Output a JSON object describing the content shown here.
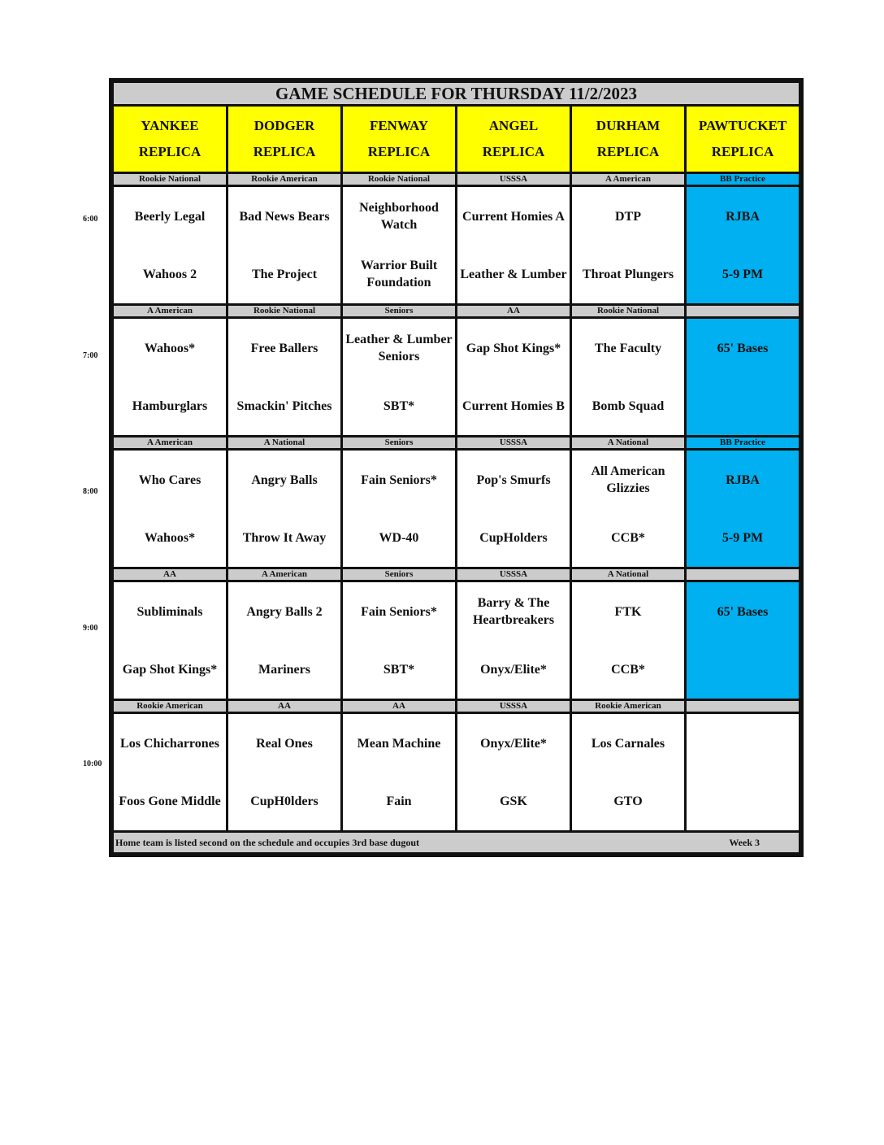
{
  "title": "GAME SCHEDULE FOR THURSDAY 11/2/2023",
  "fields": [
    {
      "l1": "YANKEE",
      "l2": "REPLICA"
    },
    {
      "l1": "DODGER",
      "l2": "REPLICA"
    },
    {
      "l1": "FENWAY",
      "l2": "REPLICA"
    },
    {
      "l1": "ANGEL",
      "l2": "REPLICA"
    },
    {
      "l1": "DURHAM",
      "l2": "REPLICA"
    },
    {
      "l1": "PAWTUCKET",
      "l2": "REPLICA"
    }
  ],
  "colors": {
    "header": "#ffff00",
    "practice": "#00b0f0",
    "band": "#cccccc"
  },
  "slots": [
    {
      "time": "6:00",
      "divisions": [
        "Rookie National",
        "Rookie American",
        "Rookie National",
        "USSSA",
        "A American",
        "BB Practice"
      ],
      "games": [
        [
          "Beerly Legal",
          "Wahoos 2"
        ],
        [
          "Bad News Bears",
          "The Project"
        ],
        [
          "Neighborhood Watch",
          "Warrior Built Foundation"
        ],
        [
          "Current Homies A",
          "Leather & Lumber"
        ],
        [
          "DTP",
          "Throat Plungers"
        ],
        [
          "RJBA",
          "5-9 PM"
        ]
      ]
    },
    {
      "time": "7:00",
      "divisions": [
        "A American",
        "Rookie National",
        "Seniors",
        "AA",
        "Rookie National",
        ""
      ],
      "games": [
        [
          "Wahoos*",
          "Hamburglars"
        ],
        [
          "Free Ballers",
          "Smackin' Pitches"
        ],
        [
          "Leather & Lumber Seniors",
          "SBT*"
        ],
        [
          "Gap Shot Kings*",
          "Current Homies B"
        ],
        [
          "The Faculty",
          "Bomb Squad"
        ],
        [
          "65' Bases",
          ""
        ]
      ]
    },
    {
      "time": "8:00",
      "divisions": [
        "A American",
        "A National",
        "Seniors",
        "USSSA",
        "A National",
        "BB Practice"
      ],
      "games": [
        [
          "Who Cares",
          "Wahoos*"
        ],
        [
          "Angry Balls",
          "Throw It Away"
        ],
        [
          "Fain Seniors*",
          "WD-40"
        ],
        [
          "Pop's Smurfs",
          "CupHolders"
        ],
        [
          "All American Glizzies",
          "CCB*"
        ],
        [
          "RJBA",
          "5-9 PM"
        ]
      ]
    },
    {
      "time": "9:00",
      "divisions": [
        "AA",
        "A American",
        "Seniors",
        "USSSA",
        "A National",
        ""
      ],
      "games": [
        [
          "Subliminals",
          "Gap Shot Kings*"
        ],
        [
          "Angry Balls 2",
          "Mariners"
        ],
        [
          "Fain Seniors*",
          "SBT*"
        ],
        [
          "Barry & The Heartbreakers",
          "Onyx/Elite*"
        ],
        [
          "FTK",
          "CCB*"
        ],
        [
          "65' Bases",
          ""
        ]
      ]
    },
    {
      "time": "10:00",
      "divisions": [
        "Rookie American",
        "AA",
        "AA",
        "USSSA",
        "Rookie American",
        ""
      ],
      "games": [
        [
          "Los Chicharrones",
          "Foos Gone Middle"
        ],
        [
          "Real Ones",
          "CupH0lders"
        ],
        [
          "Mean Machine",
          "Fain"
        ],
        [
          "Onyx/Elite*",
          "GSK"
        ],
        [
          "Los Carnales",
          "GTO"
        ],
        [
          "",
          ""
        ]
      ]
    }
  ],
  "footer": {
    "note": "Home team is listed second on the schedule and occupies 3rd base dugout",
    "week": "Week 3"
  }
}
